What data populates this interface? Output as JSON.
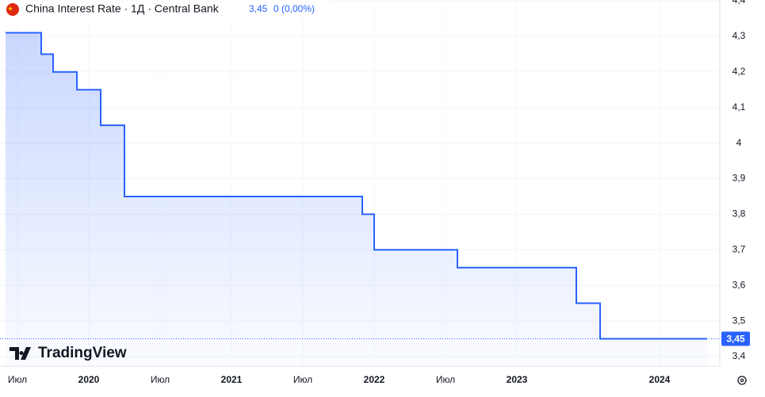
{
  "chart_data": {
    "type": "line",
    "step": "after",
    "title": "China Interest Rate · 1Д · Central Bank",
    "last_value_label": "3,45",
    "change_label": "0 (0,00%)",
    "brand": "TradingView",
    "x": [
      "2019-06",
      "2019-09",
      "2019-10",
      "2019-12",
      "2020-02",
      "2020-04",
      "2021-12",
      "2022-01",
      "2022-08",
      "2023-06",
      "2023-08",
      "2024-05"
    ],
    "series": [
      {
        "name": "China Interest Rate",
        "color": "#2962ff",
        "values": [
          4.31,
          4.25,
          4.2,
          4.15,
          4.05,
          3.85,
          3.8,
          3.7,
          3.65,
          3.55,
          3.45,
          3.45
        ]
      }
    ],
    "xlim": [
      "2019-06",
      "2024-06"
    ],
    "xticks": [
      {
        "value": "2019-07",
        "label": "Июл"
      },
      {
        "value": "2020-01",
        "label": "2020"
      },
      {
        "value": "2020-07",
        "label": "Июл"
      },
      {
        "value": "2021-01",
        "label": "2021"
      },
      {
        "value": "2021-07",
        "label": "Июл"
      },
      {
        "value": "2022-01",
        "label": "2022"
      },
      {
        "value": "2022-07",
        "label": "Июл"
      },
      {
        "value": "2023-01",
        "label": "2023"
      },
      {
        "value": "2024-01",
        "label": "2024"
      }
    ],
    "ylim": [
      3.4,
      4.4
    ],
    "yticks": [
      {
        "value": 3.4,
        "label": "3,4"
      },
      {
        "value": 3.5,
        "label": "3,5"
      },
      {
        "value": 3.6,
        "label": "3,6"
      },
      {
        "value": 3.7,
        "label": "3,7"
      },
      {
        "value": 3.8,
        "label": "3,8"
      },
      {
        "value": 3.9,
        "label": "3,9"
      },
      4,
      {
        "value": 4.1,
        "label": "4,1"
      },
      {
        "value": 4.2,
        "label": "4,2"
      },
      {
        "value": 4.3,
        "label": "4,3"
      },
      {
        "value": 4.4,
        "label": "4,4"
      }
    ],
    "grid": true
  }
}
